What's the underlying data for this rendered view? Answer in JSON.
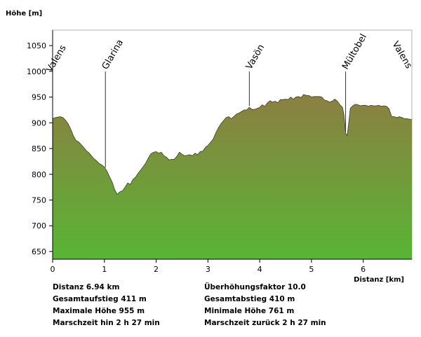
{
  "chart_data": {
    "type": "area",
    "ylabel": "Höhe [m]",
    "xlabel": "Distanz [km]",
    "xlim": [
      0,
      6.94
    ],
    "ylim": [
      635,
      1080
    ],
    "x_ticks": [
      0,
      1,
      2,
      3,
      4,
      5,
      6
    ],
    "y_ticks": [
      650,
      700,
      750,
      800,
      850,
      900,
      950,
      1000,
      1050
    ],
    "grid": false,
    "colors": {
      "top": "#8c7f42",
      "bottom": "#58b534",
      "stroke": "#3a3a3a"
    },
    "profile": {
      "x": [
        0,
        0.05,
        0.1,
        0.15,
        0.2,
        0.25,
        0.3,
        0.35,
        0.4,
        0.45,
        0.5,
        0.55,
        0.6,
        0.65,
        0.7,
        0.75,
        0.8,
        0.85,
        0.9,
        0.95,
        1.0,
        1.05,
        1.1,
        1.15,
        1.2,
        1.25,
        1.3,
        1.35,
        1.4,
        1.45,
        1.5,
        1.55,
        1.6,
        1.65,
        1.7,
        1.75,
        1.8,
        1.85,
        1.9,
        1.95,
        2.0,
        2.05,
        2.1,
        2.15,
        2.2,
        2.25,
        2.3,
        2.35,
        2.4,
        2.45,
        2.5,
        2.55,
        2.6,
        2.65,
        2.7,
        2.75,
        2.8,
        2.85,
        2.9,
        2.95,
        3.0,
        3.05,
        3.1,
        3.15,
        3.2,
        3.25,
        3.3,
        3.35,
        3.4,
        3.45,
        3.5,
        3.55,
        3.6,
        3.65,
        3.7,
        3.75,
        3.8,
        3.85,
        3.9,
        3.95,
        4.0,
        4.05,
        4.1,
        4.15,
        4.2,
        4.25,
        4.3,
        4.35,
        4.4,
        4.45,
        4.5,
        4.55,
        4.6,
        4.65,
        4.7,
        4.75,
        4.8,
        4.85,
        4.9,
        4.95,
        5.0,
        5.05,
        5.1,
        5.15,
        5.2,
        5.25,
        5.3,
        5.35,
        5.4,
        5.45,
        5.5,
        5.55,
        5.6,
        5.63,
        5.66,
        5.69,
        5.72,
        5.75,
        5.8,
        5.85,
        5.9,
        5.95,
        6.0,
        6.05,
        6.1,
        6.15,
        6.2,
        6.25,
        6.3,
        6.35,
        6.4,
        6.45,
        6.5,
        6.55,
        6.6,
        6.65,
        6.7,
        6.75,
        6.8,
        6.85,
        6.94
      ],
      "y": [
        908,
        910,
        911,
        912,
        910,
        905,
        898,
        888,
        875,
        866,
        863,
        858,
        852,
        846,
        842,
        836,
        830,
        826,
        821,
        818,
        814,
        806,
        795,
        785,
        770,
        761,
        766,
        768,
        775,
        783,
        780,
        790,
        794,
        802,
        808,
        815,
        822,
        832,
        840,
        843,
        844,
        841,
        843,
        836,
        833,
        828,
        829,
        829,
        835,
        843,
        839,
        836,
        837,
        838,
        836,
        841,
        838,
        844,
        845,
        852,
        856,
        862,
        868,
        880,
        890,
        898,
        904,
        910,
        912,
        908,
        912,
        917,
        919,
        922,
        925,
        925,
        930,
        926,
        926,
        928,
        930,
        935,
        932,
        939,
        943,
        940,
        942,
        939,
        945,
        945,
        946,
        945,
        950,
        946,
        950,
        951,
        949,
        955,
        953,
        953,
        950,
        951,
        951,
        951,
        950,
        944,
        943,
        940,
        942,
        946,
        942,
        935,
        930,
        914,
        880,
        875,
        900,
        928,
        933,
        936,
        935,
        933,
        934,
        934,
        932,
        934,
        933,
        933,
        934,
        932,
        933,
        932,
        927,
        912,
        912,
        910,
        912,
        910,
        908,
        908,
        906
      ]
    },
    "annotations": [
      {
        "label": "Valens",
        "x": 0
      },
      {
        "label": "Glarina",
        "x": 1.02
      },
      {
        "label": "Vasön",
        "x": 3.8
      },
      {
        "label": "Mültobel",
        "x": 5.66
      },
      {
        "label": "Valens",
        "x": 6.94
      }
    ]
  },
  "stats": {
    "left": [
      "Distanz 6.94 km",
      "Gesamtaufstieg  411 m",
      "Maximale Höhe  955 m",
      "Marschzeit hin  2 h 27 min"
    ],
    "right": [
      "Überhöhungsfaktor 10.0",
      "Gesamtabstieg  410 m",
      "Minimale Höhe  761 m",
      "Marschzeit zurück  2 h 27 min"
    ]
  }
}
